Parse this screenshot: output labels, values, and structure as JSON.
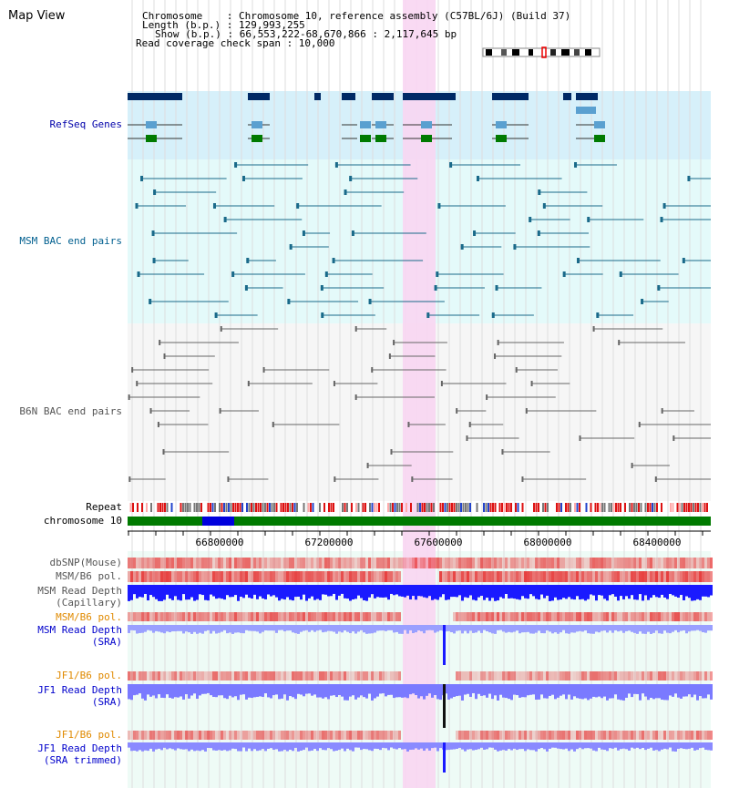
{
  "window": {
    "title": "Map View"
  },
  "info": {
    "chromosome": "Chromosome    : Chromosome 10, reference assembly (C57BL/6J) (Build 37)",
    "length": "Length (b.p.) : 129,993,255",
    "show": "Show (b.p.) : 66,553,222-68,670,866 : 2,117,645 bp",
    "coverage": "Read coverage check span : 10,000"
  },
  "tracks": {
    "refseq": "RefSeq Genes",
    "msm_bac": "MSM BAC end pairs",
    "b6n_bac": "B6N BAC end pairs",
    "repeat": "Repeat",
    "chromosome": "chromosome 10",
    "dbsnp": "dbSNP(Mouse)",
    "msm_b6_pol_1": "MSM/B6 pol.",
    "msm_depth_cap_1": "MSM Read Depth",
    "msm_depth_cap_2": "(Capillary)",
    "msm_b6_pol_2": "MSM/B6 pol.",
    "msm_depth_sra_1": "MSM Read Depth",
    "msm_depth_sra_2": "(SRA)",
    "jf1_b6_pol_1": "JF1/B6 pol.",
    "jf1_depth_sra_1": "JF1 Read Depth",
    "jf1_depth_sra_2": "(SRA)",
    "jf1_b6_pol_2": "JF1/B6 pol.",
    "jf1_depth_trim_1": "JF1 Read Depth",
    "jf1_depth_trim_2": "(SRA trimmed)"
  },
  "axis": {
    "ticks": [
      "66800000",
      "67200000",
      "67600000",
      "68000000",
      "68400000"
    ]
  },
  "colors": {
    "refseq_label": "#0000aa",
    "msm_bac_label": "#005f8f",
    "b6n_bac_label": "#555555",
    "orange_label": "#e08a00",
    "blue_label": "#0000cc",
    "highlight": "#f8d6f2",
    "refseq_bg": "#d6f0fa",
    "msm_bg": "#e4fafa",
    "chromosome_green": "#007a00",
    "read_depth_blue": "#1a1aff"
  }
}
